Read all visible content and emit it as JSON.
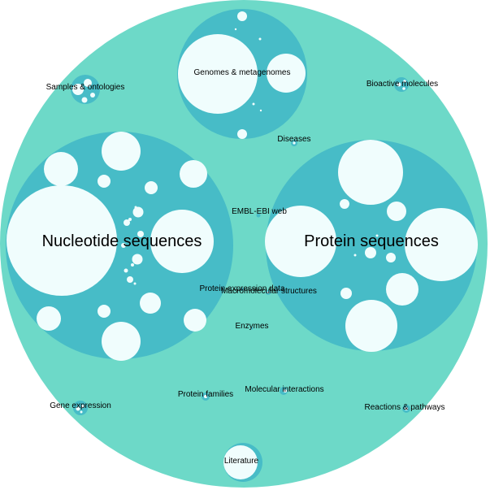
{
  "colors": {
    "outer": "#6dd9c8",
    "group": "#47bcc7",
    "leaf": "#f0fdfd",
    "label": "#000000"
  },
  "labels": {
    "genomes": "Genomes & metagenomes",
    "samples": "Samples & ontologies",
    "bioactive": "Bioactive molecules",
    "diseases": "Diseases",
    "embl_web": "EMBL-EBI web",
    "nucleotide": "Nucleotide sequences",
    "protein": "Protein sequences",
    "protein_expression": "Protein expression data",
    "macromolecular": "Macromolecular structures",
    "enzymes": "Enzymes",
    "gene_expression": "Gene expression",
    "protein_families": "Protein families",
    "molecular_interactions": "Molecular interactions",
    "reactions": "Reactions & pathways",
    "literature": "Literature"
  }
}
